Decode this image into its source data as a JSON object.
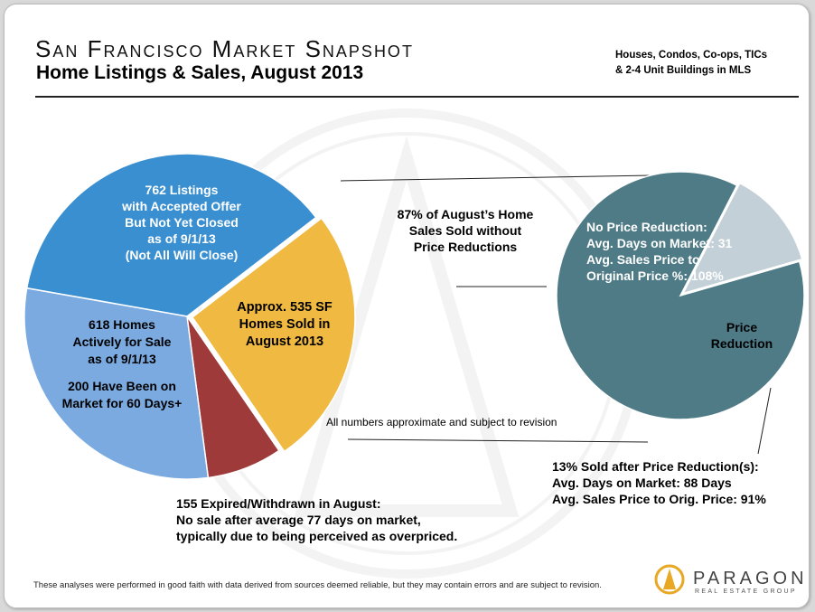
{
  "header": {
    "title": "San Francisco Market Snapshot",
    "subtitle": "Home Listings & Sales, August 2013",
    "scope_line1": "Houses, Condos, Co-ops, TICs",
    "scope_line2": "& 2-4 Unit Buildings in MLS"
  },
  "chart_data": [
    {
      "type": "pie",
      "slices": [
        {
          "value": 762,
          "color": "#3a8fd0",
          "lines": [
            "762 Listings",
            "with Accepted Offer",
            "But Not Yet Closed",
            "as of 9/1/13",
            "(Not All Will Close)"
          ]
        },
        {
          "value": 535,
          "color": "#f0b941",
          "lines": [
            "Approx. 535 SF",
            "Homes Sold in",
            "August 2013"
          ]
        },
        {
          "value": 155,
          "color": "#9e3a3a",
          "lines": []
        },
        {
          "value": 618,
          "color": "#7aaae0",
          "lines": [
            "618 Homes",
            "Actively for Sale",
            "as of 9/1/13",
            "",
            "200 Have Been on",
            "Market for 60 Days+"
          ]
        }
      ],
      "expired_lines": [
        "155 Expired/Withdrawn in August:",
        "No sale after average 77 days on market,",
        "typically due to being perceived as overpriced."
      ]
    },
    {
      "type": "pie",
      "slices": [
        {
          "value": 87,
          "color": "#4e7b86",
          "lines": [
            "No Price Reduction:",
            "Avg. Days on Market: 31",
            "Avg. Sales Price to",
            "Original Price %: 108%"
          ]
        },
        {
          "value": 13,
          "color": "#c3d0d7",
          "lines": [
            "Price",
            "Reduction"
          ]
        }
      ],
      "callout_lines": [
        "87% of August’s Home",
        "Sales Sold without",
        "Price Reductions"
      ],
      "reduction_lines": [
        "13% Sold after Price Reduction(s):",
        "Avg. Days on Market: 88 Days",
        "Avg. Sales Price to Orig. Price: 91%"
      ]
    }
  ],
  "note": "All numbers approximate and subject to revision",
  "footer": "These analyses were performed in good faith with data derived from sources deemed reliable, but they may contain errors and are subject to revision.",
  "logo": {
    "name": "PARAGON",
    "tagline": "REAL ESTATE GROUP",
    "accent": "#e8a823"
  }
}
